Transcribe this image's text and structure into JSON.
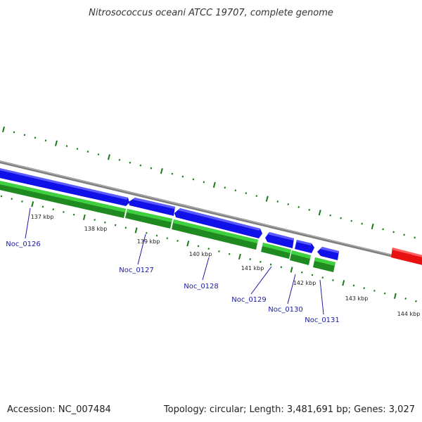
{
  "header": {
    "title": "Nitrosococcus oceani ATCC 19707, complete genome"
  },
  "footer": {
    "accession": "Accession: NC_007484",
    "summary": "Topology: circular; Length: 3,481,691 bp; Genes: 3,027"
  },
  "scale": {
    "labels": [
      "137 kbp",
      "138 kbp",
      "139 kbp",
      "140 kbp",
      "141 kbp",
      "142 kbp",
      "143 kbp",
      "144 kbp"
    ]
  },
  "genes": [
    {
      "label": "Noc_0126"
    },
    {
      "label": "Noc_0127"
    },
    {
      "label": "Noc_0128"
    },
    {
      "label": "Noc_0129"
    },
    {
      "label": "Noc_0130"
    },
    {
      "label": "Noc_0131"
    }
  ],
  "colors": {
    "cds_forward": "#1010e8",
    "cds_reverse": "#1010e8",
    "gene_track": "#2db82d",
    "gene_track_dark": "#1f8a1f",
    "other_feature": "#e81010",
    "tick": "#1a7a1a",
    "backbone": "#7f7f7f"
  }
}
